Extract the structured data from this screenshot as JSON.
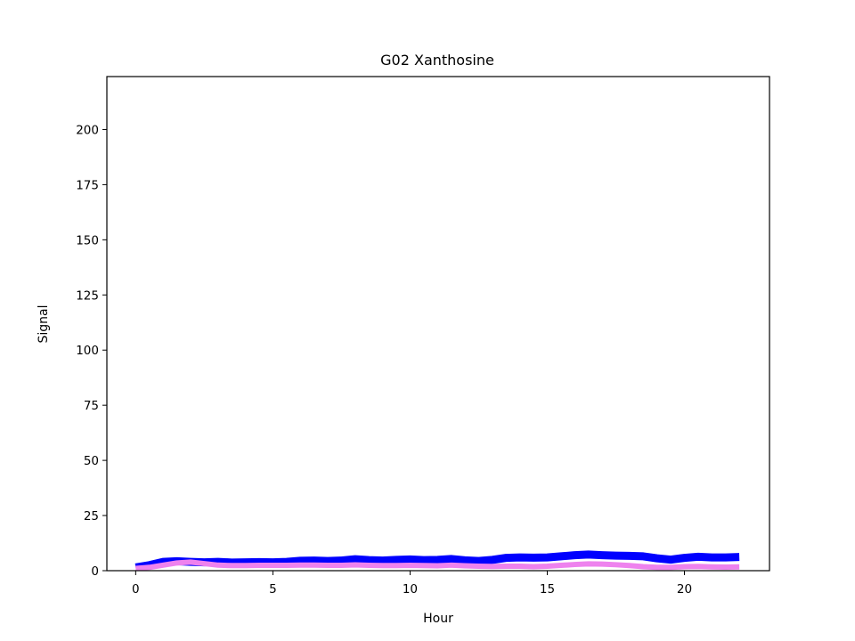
{
  "chart_data": {
    "type": "line",
    "title": "G02 Xanthosine",
    "xlabel": "Hour",
    "ylabel": "Signal",
    "xlim": [
      -1.05,
      23.1
    ],
    "ylim": [
      0,
      224
    ],
    "xticks": [
      0,
      5,
      10,
      15,
      20
    ],
    "yticks": [
      0,
      25,
      50,
      75,
      100,
      125,
      150,
      175,
      200
    ],
    "grid": false,
    "legend": "none",
    "x": [
      0,
      0.5,
      1,
      1.5,
      2,
      2.5,
      3,
      3.5,
      4,
      4.5,
      5,
      5.5,
      6,
      6.5,
      7,
      7.5,
      8,
      8.5,
      9,
      9.5,
      10,
      10.5,
      11,
      11.5,
      12,
      12.5,
      13,
      13.5,
      14,
      14.5,
      15,
      15.5,
      16,
      16.5,
      17,
      17.5,
      18,
      18.5,
      19,
      19.5,
      20,
      20.5,
      21,
      21.5,
      22
    ],
    "series": [
      {
        "color": "#0000ff",
        "linewidth": 9,
        "values": [
          1.5,
          2.5,
          4.0,
          4.3,
          4.0,
          3.8,
          4.0,
          3.7,
          3.8,
          3.9,
          3.8,
          4.0,
          4.5,
          4.6,
          4.4,
          4.6,
          5.2,
          4.8,
          4.6,
          4.9,
          5.1,
          4.8,
          4.9,
          5.3,
          4.7,
          4.4,
          4.9,
          5.8,
          6.0,
          5.9,
          6.0,
          6.5,
          7.0,
          7.3,
          7.0,
          6.8,
          6.7,
          6.5,
          5.6,
          5.0,
          5.8,
          6.3,
          6.0,
          6.0,
          6.2
        ]
      },
      {
        "color": "#ee82ee",
        "linewidth": 6,
        "values": [
          1.0,
          1.5,
          2.5,
          3.5,
          3.9,
          3.2,
          2.5,
          2.3,
          2.3,
          2.4,
          2.4,
          2.4,
          2.5,
          2.5,
          2.4,
          2.4,
          2.6,
          2.4,
          2.3,
          2.3,
          2.4,
          2.3,
          2.2,
          2.5,
          2.2,
          2.0,
          1.9,
          2.0,
          2.0,
          1.8,
          2.0,
          2.4,
          2.8,
          3.1,
          3.0,
          2.7,
          2.3,
          1.8,
          1.5,
          1.5,
          1.8,
          1.9,
          1.7,
          1.6,
          1.7
        ]
      }
    ]
  }
}
